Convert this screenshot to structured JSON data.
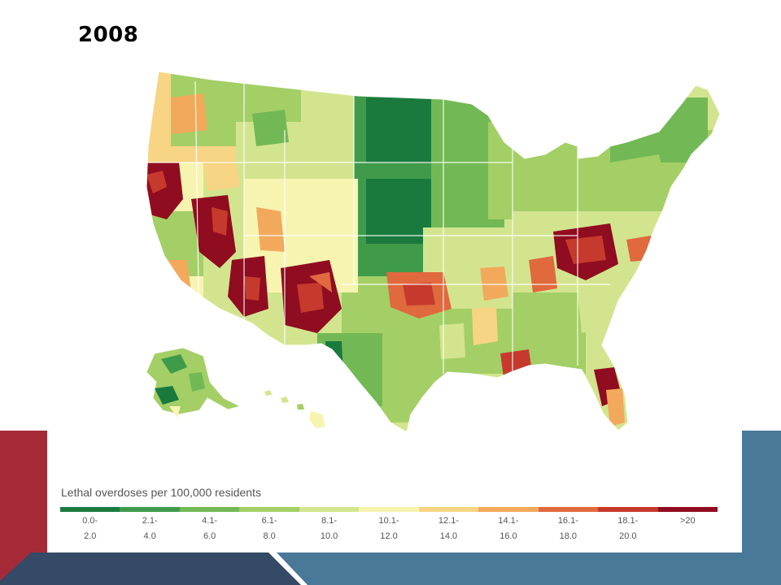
{
  "slide": {
    "title": "2008"
  },
  "legend": {
    "title": "Lethal overdoses per 100,000 residents",
    "bins": [
      {
        "line1": "0.0-",
        "line2": "2.0",
        "color": "#1a7a3e"
      },
      {
        "line1": "2.1-",
        "line2": "4.0",
        "color": "#3f9a4a"
      },
      {
        "line1": "4.1-",
        "line2": "6.0",
        "color": "#72b955"
      },
      {
        "line1": "6.1-",
        "line2": "8.0",
        "color": "#a3cf66"
      },
      {
        "line1": "8.1-",
        "line2": "10.0",
        "color": "#d2e58e"
      },
      {
        "line1": "10.1-",
        "line2": "12.0",
        "color": "#f7f4b0"
      },
      {
        "line1": "12.1-",
        "line2": "14.0",
        "color": "#f7d584"
      },
      {
        "line1": "14.1-",
        "line2": "16.0",
        "color": "#f2a95c"
      },
      {
        "line1": "16.1-",
        "line2": "18.0",
        "color": "#e0693e"
      },
      {
        "line1": "18.1-",
        "line2": "20.0",
        "color": "#c53a2c"
      },
      {
        "line1": ">20",
        "line2": "",
        "color": "#900c20"
      }
    ]
  },
  "theme": {
    "accent_red": "#a52a38",
    "accent_blue": "#4a7898",
    "accent_navy": "#344a66"
  }
}
